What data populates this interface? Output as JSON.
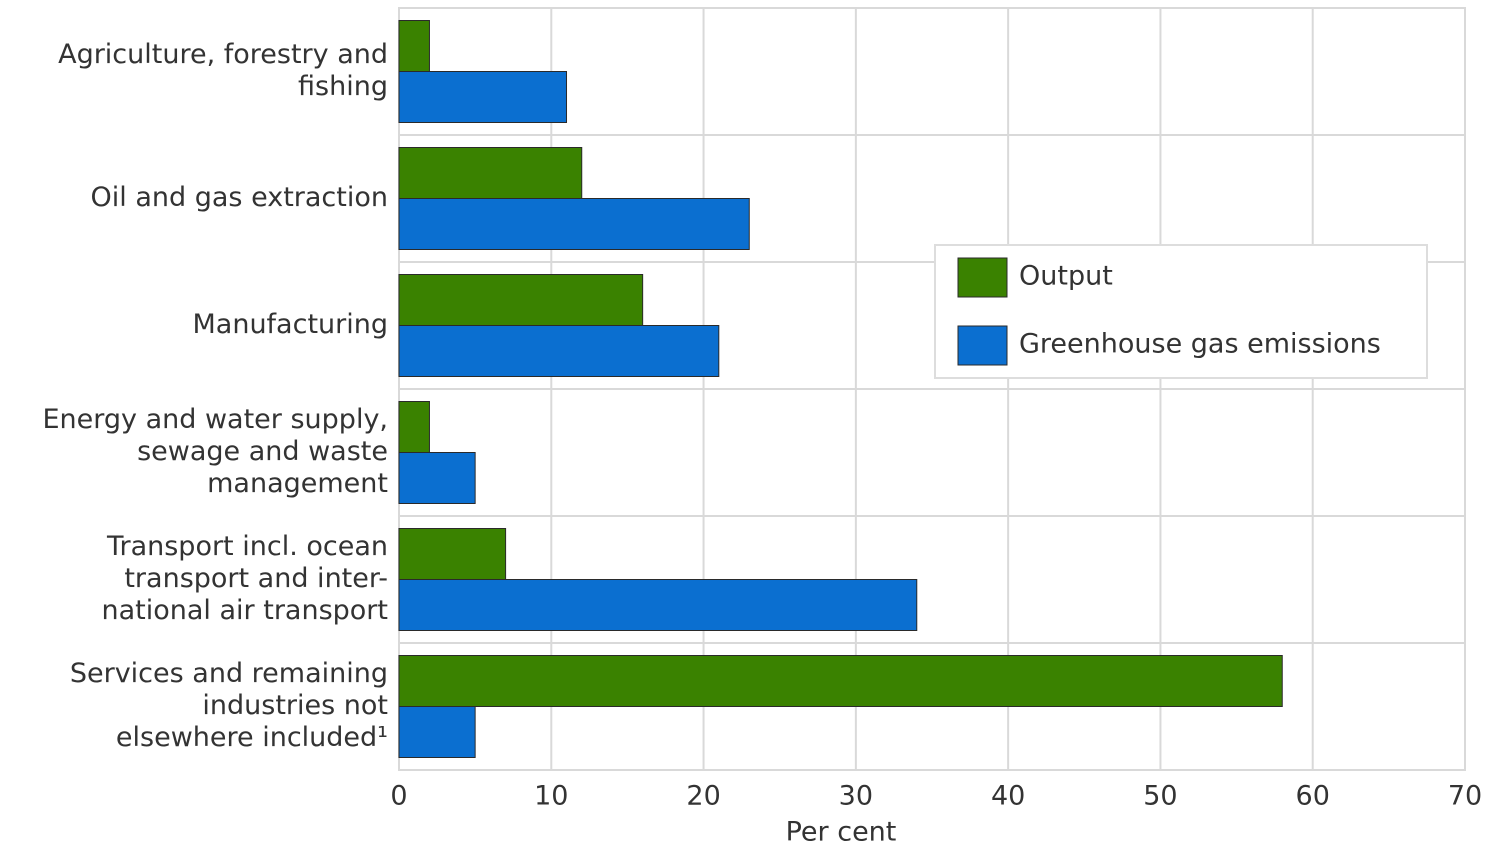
{
  "chart_data": {
    "type": "bar",
    "orientation": "horizontal",
    "categories": [
      [
        "Agriculture, forestry and",
        "fishing"
      ],
      [
        "Oil and gas extraction"
      ],
      [
        "Manufacturing"
      ],
      [
        "Energy and water supply,",
        "sewage and waste",
        "management"
      ],
      [
        "Transport incl. ocean",
        "transport and inter-",
        "national  air transport"
      ],
      [
        "Services and remaining",
        "industries not",
        "elsewhere included¹"
      ]
    ],
    "series": [
      {
        "name": "Output",
        "color": "#3a8200",
        "values": [
          2,
          12,
          16,
          2,
          7,
          58
        ]
      },
      {
        "name": "Greenhouse gas emissions",
        "color": "#0b6fd0",
        "values": [
          11,
          23,
          21,
          5,
          34,
          5
        ]
      }
    ],
    "xlabel": "Per cent",
    "xlim": [
      0,
      70
    ],
    "xticks": [
      0,
      10,
      20,
      30,
      40,
      50,
      60,
      70
    ],
    "grid": true,
    "legend": "upper right"
  }
}
